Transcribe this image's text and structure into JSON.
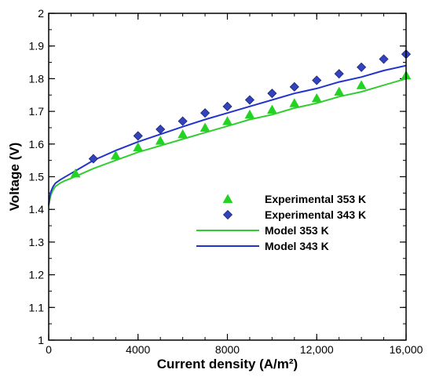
{
  "chart_data": {
    "type": "scatter",
    "xlabel": "Current density (A/m²)",
    "ylabel": "Voltage (V)",
    "xlim": [
      0,
      16000
    ],
    "ylim": [
      1,
      2
    ],
    "x_ticks": [
      0,
      4000,
      8000,
      12000,
      16000
    ],
    "x_tick_labels": [
      "0",
      "4000",
      "8000",
      "12,000",
      "16,000"
    ],
    "x_minor_step": 1000,
    "y_ticks": [
      1,
      1.1,
      1.2,
      1.3,
      1.4,
      1.5,
      1.6,
      1.7,
      1.8,
      1.9,
      2
    ],
    "y_tick_labels": [
      "1",
      "1.1",
      "1.2",
      "1.3",
      "1.4",
      "1.5",
      "1.6",
      "1.7",
      "1.8",
      "1.9",
      "2"
    ],
    "y_minor_step": 0.05,
    "grid": false,
    "legend_position": "center-right",
    "series": [
      {
        "name": "Experimental 353 K",
        "kind": "markers",
        "marker": "triangle",
        "color": "#22d322",
        "x": [
          1200,
          3000,
          4000,
          5000,
          6000,
          7000,
          8000,
          9000,
          10000,
          11000,
          12000,
          13000,
          14000,
          16000
        ],
        "y": [
          1.51,
          1.565,
          1.59,
          1.61,
          1.63,
          1.65,
          1.67,
          1.69,
          1.705,
          1.725,
          1.74,
          1.76,
          1.78,
          1.81
        ]
      },
      {
        "name": "Experimental 343 K",
        "kind": "markers",
        "marker": "diamond",
        "color": "#3344bb",
        "x": [
          2000,
          4000,
          5000,
          6000,
          7000,
          8000,
          9000,
          10000,
          11000,
          12000,
          13000,
          14000,
          15000,
          16000
        ],
        "y": [
          1.555,
          1.625,
          1.645,
          1.67,
          1.695,
          1.715,
          1.735,
          1.755,
          1.775,
          1.795,
          1.815,
          1.835,
          1.86,
          1.875
        ]
      },
      {
        "name": "Model 353 K",
        "kind": "line",
        "color": "#33cc33",
        "x": [
          0,
          50,
          100,
          200,
          300,
          500,
          700,
          1000,
          1500,
          2000,
          3000,
          4000,
          5000,
          6000,
          7000,
          8000,
          9000,
          10000,
          11000,
          12000,
          13000,
          14000,
          15000,
          16000
        ],
        "y": [
          1.41,
          1.43,
          1.445,
          1.46,
          1.47,
          1.48,
          1.487,
          1.495,
          1.51,
          1.525,
          1.55,
          1.575,
          1.595,
          1.615,
          1.635,
          1.655,
          1.675,
          1.69,
          1.71,
          1.725,
          1.745,
          1.76,
          1.78,
          1.8
        ]
      },
      {
        "name": "Model 343 K",
        "kind": "line",
        "color": "#2233cc",
        "x": [
          0,
          50,
          100,
          200,
          300,
          500,
          700,
          1000,
          1500,
          2000,
          3000,
          4000,
          5000,
          6000,
          7000,
          8000,
          9000,
          10000,
          11000,
          12000,
          13000,
          14000,
          15000,
          16000
        ],
        "y": [
          1.415,
          1.44,
          1.455,
          1.47,
          1.48,
          1.49,
          1.498,
          1.51,
          1.53,
          1.55,
          1.58,
          1.607,
          1.63,
          1.653,
          1.675,
          1.695,
          1.715,
          1.735,
          1.755,
          1.77,
          1.79,
          1.805,
          1.825,
          1.84
        ]
      }
    ]
  }
}
